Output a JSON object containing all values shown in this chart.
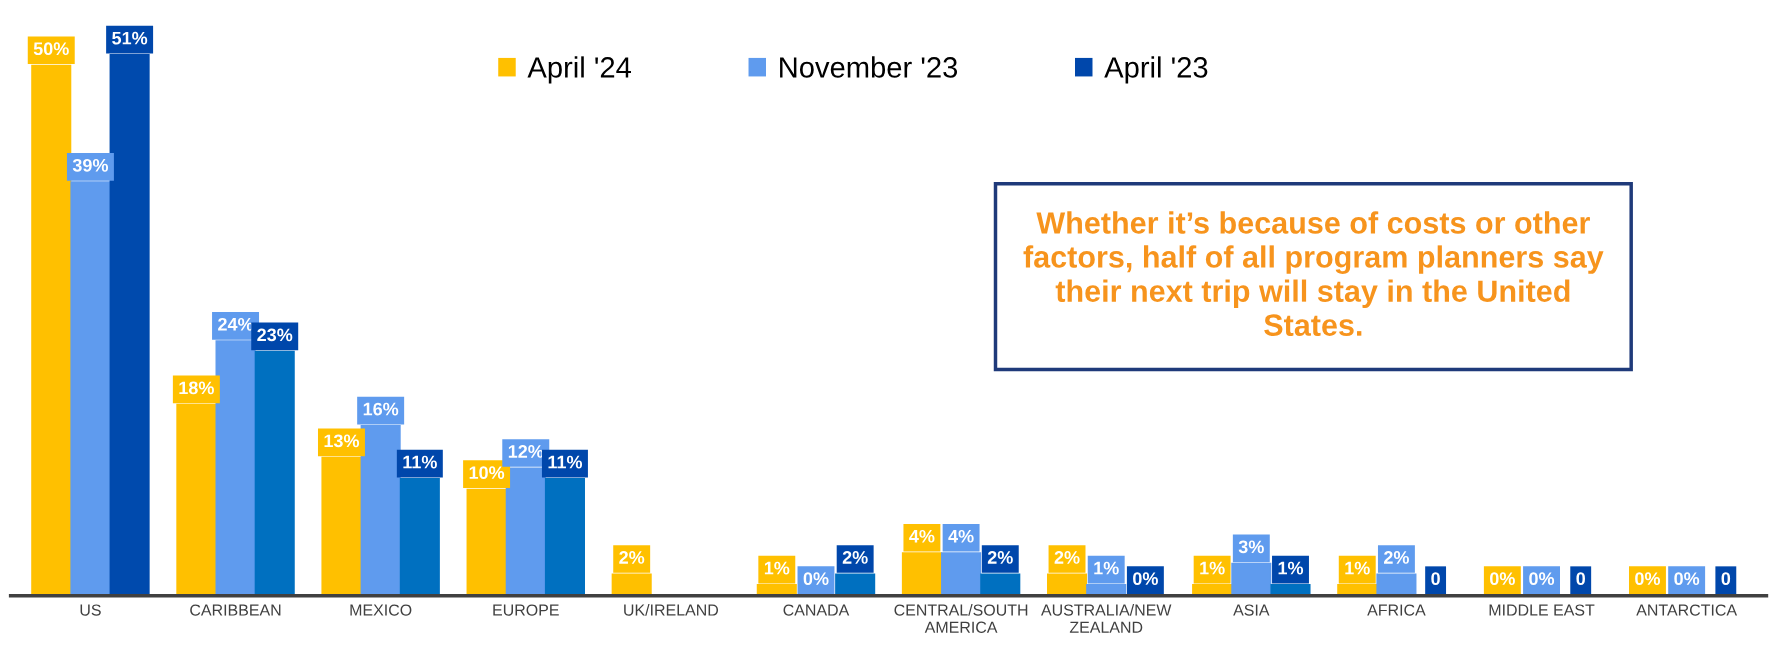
{
  "chart_data": {
    "type": "bar",
    "categories": [
      "US",
      "CARIBBEAN",
      "MEXICO",
      "EUROPE",
      "UK/IRELAND",
      "CANADA",
      "CENTRAL/SOUTH\nAMERICA",
      "AUSTRALIA/NEW\nZEALAND",
      "ASIA",
      "AFRICA",
      "MIDDLE EAST",
      "ANTARCTICA"
    ],
    "series": [
      {
        "name": "April '24",
        "color": "#ffc000",
        "values": [
          50,
          18,
          13,
          10,
          2,
          1,
          4,
          2,
          1,
          1,
          0,
          0
        ],
        "value_labels": [
          "50%",
          "18%",
          "13%",
          "10%",
          "2%",
          "1%",
          "4%",
          "2%",
          "1%",
          "1%",
          "0%",
          "0%"
        ]
      },
      {
        "name": "November '23",
        "color": "#5f9bee",
        "values": [
          39,
          24,
          16,
          12,
          null,
          0,
          4,
          1,
          3,
          2,
          0,
          0
        ],
        "value_labels": [
          "39%",
          "24%",
          "16%",
          "12%",
          null,
          "0%",
          "4%",
          "1%",
          "3%",
          "2%",
          "0%",
          "0%"
        ]
      },
      {
        "name": "April '23",
        "color": "#0047ab",
        "colors": [
          "#004aad",
          "#0070c0",
          "#0070c0",
          "#0070c0",
          "#0070c0",
          "#0070c0",
          "#0070c0",
          "#0070c0",
          "#0070c0",
          "#0070c0",
          "#0070c0",
          "#0070c0"
        ],
        "values": [
          51,
          23,
          11,
          11,
          null,
          2,
          2,
          0,
          1,
          0,
          0,
          0
        ],
        "value_labels": [
          "51%",
          "23%",
          "11%",
          "11%",
          null,
          "2%",
          "2%",
          "0%",
          "1%",
          "0",
          "0",
          "0"
        ]
      }
    ],
    "legend": "top",
    "grid": false,
    "annotations": [
      "Whether it’s because of costs or other factors, half of all program planners say their next trip will stay in the United States."
    ]
  }
}
